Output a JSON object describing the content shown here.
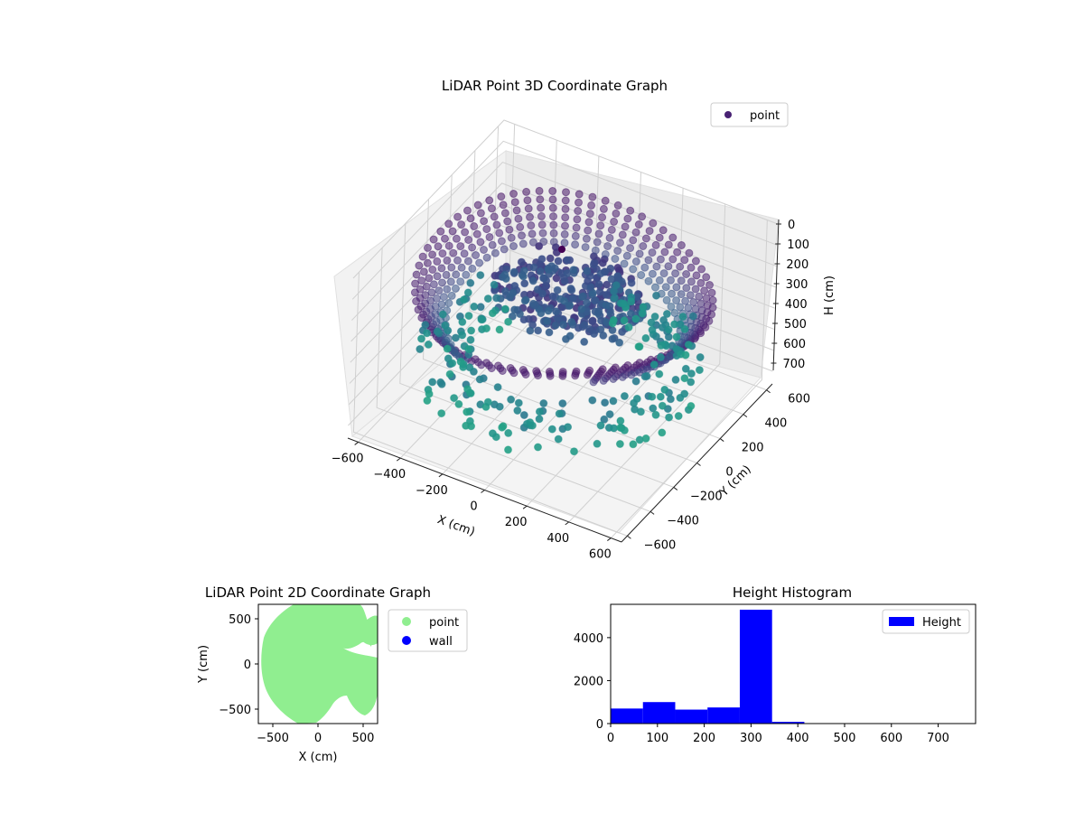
{
  "chart_data": [
    {
      "type": "scatter3d",
      "title": "LiDAR Point 3D Coordinate Graph",
      "xlabel": "X (cm)",
      "ylabel": "Y (cm)",
      "zlabel": "H (cm)",
      "xlim": [
        -650,
        650
      ],
      "ylim": [
        -650,
        650
      ],
      "zlim": [
        0,
        760
      ],
      "z_inverted": true,
      "xticks": [
        "−600",
        "−400",
        "−200",
        "0",
        "200",
        "400",
        "600"
      ],
      "yticks": [
        "−600",
        "−400",
        "−200",
        "0",
        "200",
        "400",
        "600"
      ],
      "zticks": [
        "0",
        "100",
        "200",
        "300",
        "400",
        "500",
        "600",
        "700"
      ],
      "grid": true,
      "colormap": "viridis",
      "legend": {
        "placement": "upper-right",
        "entries": [
          {
            "label": "point",
            "color": "#482173"
          }
        ]
      },
      "series": [
        {
          "name": "point",
          "description_groups": [
            {
              "shape": "ring",
              "radius": 600,
              "h": 300,
              "count": 60
            },
            {
              "shape": "ring",
              "radius": 560,
              "h": 330,
              "count": 56
            },
            {
              "shape": "ring",
              "radius": 520,
              "h": 360,
              "count": 52
            },
            {
              "shape": "cluster",
              "x": 100,
              "y": -100,
              "h": 340
            }
          ]
        }
      ]
    },
    {
      "type": "scatter",
      "title": "LiDAR Point 2D Coordinate Graph",
      "xlabel": "X (cm)",
      "ylabel": "Y (cm)",
      "xlim": [
        -660,
        660
      ],
      "ylim": [
        -660,
        660
      ],
      "xticks": [
        "−500",
        "0",
        "500"
      ],
      "yticks": [
        "−500",
        "0",
        "500"
      ],
      "legend": {
        "placement": "outside-right",
        "entries": [
          {
            "label": "point",
            "color": "#90ee90"
          },
          {
            "label": "wall",
            "color": "#0000ff"
          }
        ]
      },
      "series": [
        {
          "name": "point",
          "color": "#90ee90",
          "shape": "disc",
          "radius": 620
        },
        {
          "name": "wall",
          "color": "#0000ff",
          "values": []
        }
      ]
    },
    {
      "type": "bar",
      "title": "Height Histogram",
      "xlim": [
        0,
        780
      ],
      "ylim": [
        0,
        5550
      ],
      "xticks": [
        "0",
        "100",
        "200",
        "300",
        "400",
        "500",
        "600",
        "700"
      ],
      "yticks": [
        "0",
        "2000",
        "4000"
      ],
      "legend": {
        "placement": "upper-right",
        "entries": [
          {
            "label": "Height",
            "color": "#0000ff"
          }
        ]
      },
      "series": [
        {
          "name": "Height",
          "color": "#0000ff",
          "bins": [
            {
              "x0": 0,
              "x1": 69,
              "count": 700
            },
            {
              "x0": 69,
              "x1": 138,
              "count": 1000
            },
            {
              "x0": 138,
              "x1": 207,
              "count": 650
            },
            {
              "x0": 207,
              "x1": 276,
              "count": 750
            },
            {
              "x0": 276,
              "x1": 345,
              "count": 5300
            },
            {
              "x0": 345,
              "x1": 414,
              "count": 80
            },
            {
              "x0": 414,
              "x1": 483,
              "count": 0
            },
            {
              "x0": 483,
              "x1": 552,
              "count": 0
            },
            {
              "x0": 552,
              "x1": 621,
              "count": 0
            },
            {
              "x0": 621,
              "x1": 690,
              "count": 0
            },
            {
              "x0": 690,
              "x1": 759,
              "count": 0
            }
          ]
        }
      ]
    }
  ]
}
